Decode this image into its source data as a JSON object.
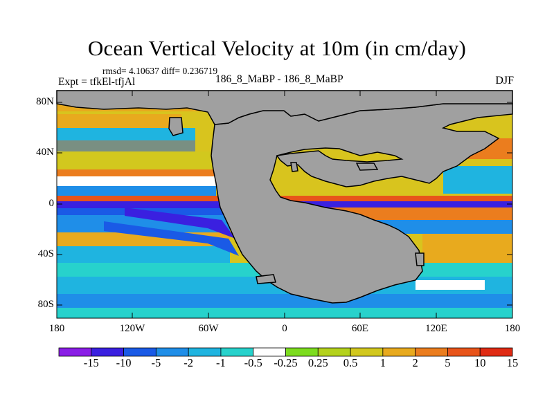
{
  "title": "Ocean Vertical Velocity at 10m (in cm/day)",
  "stats": "rmsd= 4.10637 diff= 0.236719",
  "experiment": "Expt = tfkEl-tfjAl",
  "difference_label": "186_8_MaBP - 186_8_MaBP",
  "season": "DJF",
  "land_color": "#a0a0a0",
  "y_axis_labels": [
    "80N",
    "40N",
    "0",
    "40S",
    "80S"
  ],
  "x_axis_labels": [
    "180",
    "120W",
    "60W",
    "0",
    "60E",
    "120E",
    "180"
  ],
  "colorbar": {
    "colors": [
      "#8a1ee6",
      "#3a20e0",
      "#1a5ae6",
      "#1f8ee8",
      "#1fb4e0",
      "#27d2cc",
      "#ffffff",
      "#7cdc1e",
      "#b4d21c",
      "#d2c81e",
      "#e8aa1e",
      "#eb7d1e",
      "#e8541a",
      "#e02b14"
    ],
    "labels": [
      "-15",
      "-10",
      "-5",
      "-2",
      "-1",
      "-0.5",
      "-0.25",
      "0.25",
      "0.5",
      "1",
      "2",
      "5",
      "10",
      "15"
    ]
  }
}
